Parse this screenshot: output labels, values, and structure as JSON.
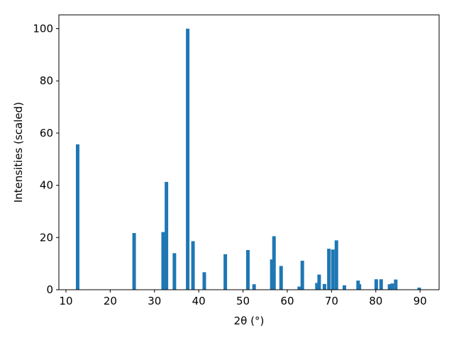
{
  "chart_data": {
    "type": "bar",
    "xlabel": "2θ (°)",
    "ylabel": "Intensities (scaled)",
    "x": [
      12.64,
      25.4,
      31.95,
      32.7,
      34.5,
      37.5,
      38.7,
      41.25,
      46.0,
      51.1,
      52.5,
      56.5,
      57.0,
      58.6,
      62.7,
      63.4,
      66.7,
      67.2,
      68.4,
      69.4,
      70.3,
      71.1,
      72.9,
      76.0,
      76.3,
      80.1,
      81.2,
      83.1,
      83.7,
      84.5,
      89.8
    ],
    "values": [
      55.7,
      21.7,
      22.1,
      41.3,
      14,
      100,
      18.6,
      6.7,
      13.6,
      15.2,
      2.1,
      11.6,
      20.5,
      9.1,
      1.2,
      11.1,
      2.6,
      5.8,
      2.2,
      15.7,
      15.4,
      18.9,
      1.7,
      3.5,
      2.1,
      4,
      4,
      2.1,
      2.4,
      3.9,
      0.8
    ],
    "color": "#1f77b4",
    "xlim": [
      8.4,
      94.3
    ],
    "xticks": [
      10,
      20,
      30,
      40,
      50,
      60,
      70,
      80,
      90
    ],
    "ylim": [
      0,
      105.3
    ],
    "yticks": [
      0,
      20,
      40,
      60,
      80,
      100
    ],
    "grid": false
  }
}
